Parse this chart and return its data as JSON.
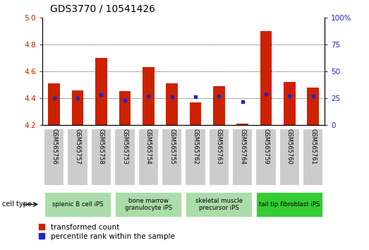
{
  "title": "GDS3770 / 10541426",
  "samples": [
    "GSM565756",
    "GSM565757",
    "GSM565758",
    "GSM565753",
    "GSM565754",
    "GSM565755",
    "GSM565762",
    "GSM565763",
    "GSM565764",
    "GSM565759",
    "GSM565760",
    "GSM565761"
  ],
  "transformed_count": [
    4.51,
    4.46,
    4.7,
    4.45,
    4.63,
    4.51,
    4.37,
    4.49,
    4.21,
    4.9,
    4.52,
    4.48
  ],
  "percentile_rank": [
    25,
    25,
    28,
    23,
    27,
    26,
    26,
    27,
    22,
    29,
    27,
    27
  ],
  "bar_bottom": 4.2,
  "ylim": [
    4.2,
    5.0
  ],
  "y2lim": [
    0,
    100
  ],
  "yticks": [
    4.2,
    4.4,
    4.6,
    4.8,
    5.0
  ],
  "y2ticks": [
    0,
    25,
    50,
    75,
    100
  ],
  "bar_color": "#cc2200",
  "dot_color": "#2222cc",
  "grid_color": "#000000",
  "cell_types": [
    {
      "label": "splenic B cell iPS",
      "start": 0,
      "end": 3,
      "color": "#aaddaa"
    },
    {
      "label": "bone marrow\ngranulocyte iPS",
      "start": 3,
      "end": 6,
      "color": "#aaddaa"
    },
    {
      "label": "skeletal muscle\nprecursor iPS",
      "start": 6,
      "end": 9,
      "color": "#aaddaa"
    },
    {
      "label": "tail tip fibroblast iPS",
      "start": 9,
      "end": 12,
      "color": "#33cc33"
    }
  ],
  "legend_bar_label": "transformed count",
  "legend_dot_label": "percentile rank within the sample",
  "bar_width": 0.5,
  "tick_label_color_left": "#cc2200",
  "tick_label_color_right": "#2222cc",
  "sample_box_color": "#cccccc",
  "title_fontsize": 10
}
